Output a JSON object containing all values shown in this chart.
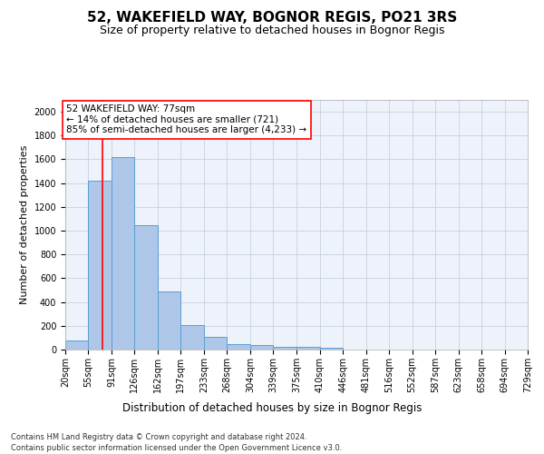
{
  "title": "52, WAKEFIELD WAY, BOGNOR REGIS, PO21 3RS",
  "subtitle": "Size of property relative to detached houses in Bognor Regis",
  "xlabel": "Distribution of detached houses by size in Bognor Regis",
  "ylabel": "Number of detached properties",
  "annotation_title": "52 WAKEFIELD WAY: 77sqm",
  "annotation_line1": "← 14% of detached houses are smaller (721)",
  "annotation_line2": "85% of semi-detached houses are larger (4,233) →",
  "footer1": "Contains HM Land Registry data © Crown copyright and database right 2024.",
  "footer2": "Contains public sector information licensed under the Open Government Licence v3.0.",
  "bin_edges": [
    20,
    55,
    91,
    126,
    162,
    197,
    233,
    268,
    304,
    339,
    375,
    410,
    446,
    481,
    516,
    552,
    587,
    623,
    658,
    694,
    729
  ],
  "bar_heights": [
    80,
    1420,
    1620,
    1050,
    490,
    205,
    105,
    48,
    35,
    25,
    20,
    15,
    0,
    0,
    0,
    0,
    0,
    0,
    0,
    0
  ],
  "bar_color": "#aec6e8",
  "bar_edge_color": "#5a9fd4",
  "red_line_x": 77,
  "ylim": [
    0,
    2100
  ],
  "yticks": [
    0,
    200,
    400,
    600,
    800,
    1000,
    1200,
    1400,
    1600,
    1800,
    2000
  ],
  "grid_color": "#c8d0e0",
  "background_color": "#eef2fa",
  "title_fontsize": 11,
  "subtitle_fontsize": 9,
  "axis_label_fontsize": 8.5,
  "tick_fontsize": 7,
  "annotation_fontsize": 7.5,
  "footer_fontsize": 6,
  "ylabel_fontsize": 8
}
